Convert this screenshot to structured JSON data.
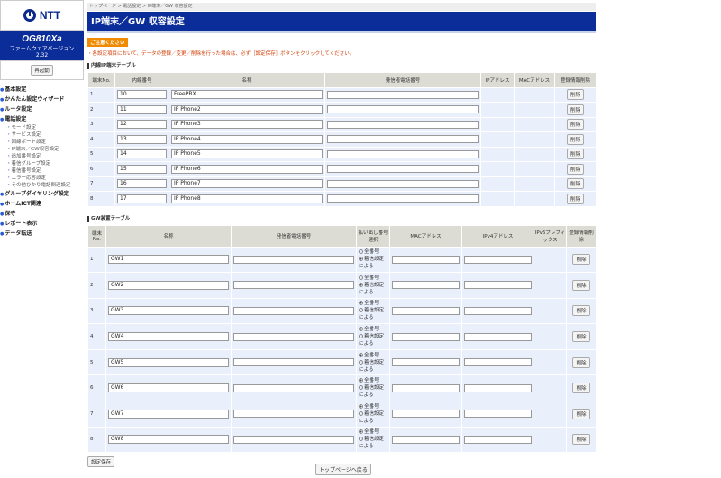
{
  "sidebar": {
    "logo": "NTT",
    "model": "OG810Xa",
    "fw_label": "ファームウェアバージョン",
    "fw_version": "2.32",
    "reboot": "再起動",
    "items": [
      {
        "label": "基本設定",
        "sub": []
      },
      {
        "label": "かんたん設定ウィザード",
        "sub": []
      },
      {
        "label": "ルータ設定",
        "sub": []
      },
      {
        "label": "電話設定",
        "sub": [
          "モード設定",
          "サービス設定",
          "回線ポート設定",
          "IP端末／GW収容設定",
          "追加番号設定",
          "着信グループ設定",
          "着信番号設定",
          "エラー応答設定",
          "その他ひかり電話関連設定"
        ]
      },
      {
        "label": "グループダイヤリング設定",
        "sub": []
      },
      {
        "label": "ホームICT関連",
        "sub": []
      },
      {
        "label": "保守",
        "sub": []
      },
      {
        "label": "レポート表示",
        "sub": []
      },
      {
        "label": "データ転送",
        "sub": []
      }
    ]
  },
  "breadcrumb": "トップページ > 電話設定 > IP端末／GW 収容設定",
  "title": "IP端末／GW 収容設定",
  "warning": "ご注意ください",
  "note": "・各設定項目において、データの登録／変更／削除を行った場合は、必ず［設定保存］ボタンをクリックしてください。",
  "ip_table": {
    "title": "内線IP端末テーブル",
    "headers": [
      "端末No.",
      "内線番号",
      "名称",
      "発信者電話番号",
      "IPアドレス",
      "MACアドレス",
      "登録情報削除"
    ],
    "delete_label": "削除",
    "rows": [
      {
        "no": "1",
        "ext": "10",
        "name": "FreePBX",
        "caller": ""
      },
      {
        "no": "2",
        "ext": "11",
        "name": "IP Phone2",
        "caller": ""
      },
      {
        "no": "3",
        "ext": "12",
        "name": "IP Phone3",
        "caller": ""
      },
      {
        "no": "4",
        "ext": "13",
        "name": "IP Phone4",
        "caller": ""
      },
      {
        "no": "5",
        "ext": "14",
        "name": "IP Phone5",
        "caller": ""
      },
      {
        "no": "6",
        "ext": "15",
        "name": "IP Phone6",
        "caller": ""
      },
      {
        "no": "7",
        "ext": "16",
        "name": "IP Phone7",
        "caller": ""
      },
      {
        "no": "8",
        "ext": "17",
        "name": "IP Phone8",
        "caller": ""
      }
    ]
  },
  "gw_table": {
    "title": "GW装置テーブル",
    "headers": [
      "端末No.",
      "名称",
      "発信者電話番号",
      "払い出し番号選択",
      "MACアドレス",
      "IPv4アドレス",
      "IPv6プレフィックス",
      "登録情報削除"
    ],
    "opt_all": "全番号",
    "opt_in": "着信設定による",
    "delete_label": "削除",
    "rows": [
      {
        "no": "1",
        "name": "GW1",
        "caller": "",
        "select": "in",
        "mac": "",
        "ipv4": ""
      },
      {
        "no": "2",
        "name": "GW2",
        "caller": "",
        "select": "in",
        "mac": "",
        "ipv4": ""
      },
      {
        "no": "3",
        "name": "GW3",
        "caller": "",
        "select": "all",
        "mac": "",
        "ipv4": ""
      },
      {
        "no": "4",
        "name": "GW4",
        "caller": "",
        "select": "all",
        "mac": "",
        "ipv4": ""
      },
      {
        "no": "5",
        "name": "GW5",
        "caller": "",
        "select": "all",
        "mac": "",
        "ipv4": ""
      },
      {
        "no": "6",
        "name": "GW6",
        "caller": "",
        "select": "all",
        "mac": "",
        "ipv4": ""
      },
      {
        "no": "7",
        "name": "GW7",
        "caller": "",
        "select": "all",
        "mac": "",
        "ipv4": ""
      },
      {
        "no": "8",
        "name": "GW8",
        "caller": "",
        "select": "all",
        "mac": "",
        "ipv4": ""
      }
    ]
  },
  "save": "設定保存",
  "back": "トップページへ戻る"
}
